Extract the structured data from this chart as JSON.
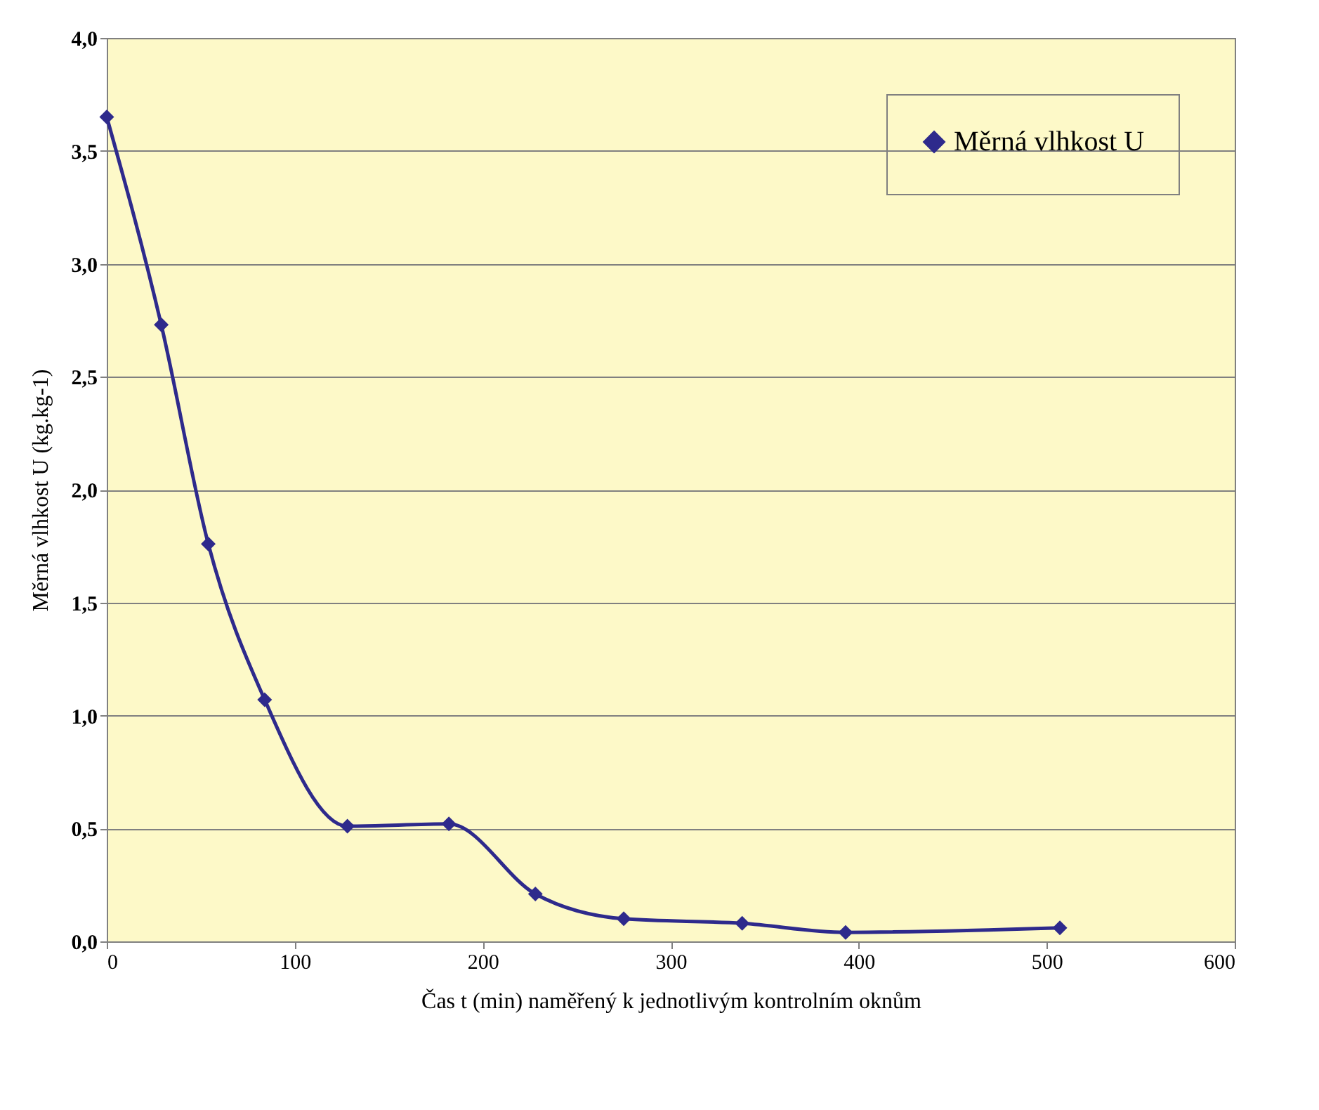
{
  "chart_data": {
    "type": "line",
    "xlabel": "Čas t (min) naměřený k jednotlivým kontrolním oknům",
    "ylabel": "Měrná vlhkost U (kg.kg-1)",
    "x": [
      0,
      29,
      54,
      84,
      128,
      182,
      228,
      275,
      338,
      393,
      507
    ],
    "series": [
      {
        "name": "Měrná vlhkost U",
        "color": "#2e2a8c",
        "values": [
          3.65,
          2.73,
          1.76,
          1.07,
          0.51,
          0.52,
          0.21,
          0.1,
          0.08,
          0.04,
          0.06
        ]
      }
    ],
    "xlim": [
      0,
      600
    ],
    "xticks": [
      0,
      100,
      200,
      300,
      400,
      500,
      600
    ],
    "ylim": [
      0,
      4
    ],
    "yticks": [
      {
        "value": 0,
        "label": "0,0"
      },
      {
        "value": 0.5,
        "label": "0,5"
      },
      {
        "value": 1,
        "label": "1,0"
      },
      {
        "value": 1.5,
        "label": "1,5"
      },
      {
        "value": 2,
        "label": "2,0"
      },
      {
        "value": 2.5,
        "label": "2,5"
      },
      {
        "value": 3,
        "label": "3,0"
      },
      {
        "value": 3.5,
        "label": "3,5"
      },
      {
        "value": 4,
        "label": "4,0"
      }
    ],
    "grid": "y",
    "legend": "top right",
    "marker": "diamond",
    "line_style": "solid"
  }
}
